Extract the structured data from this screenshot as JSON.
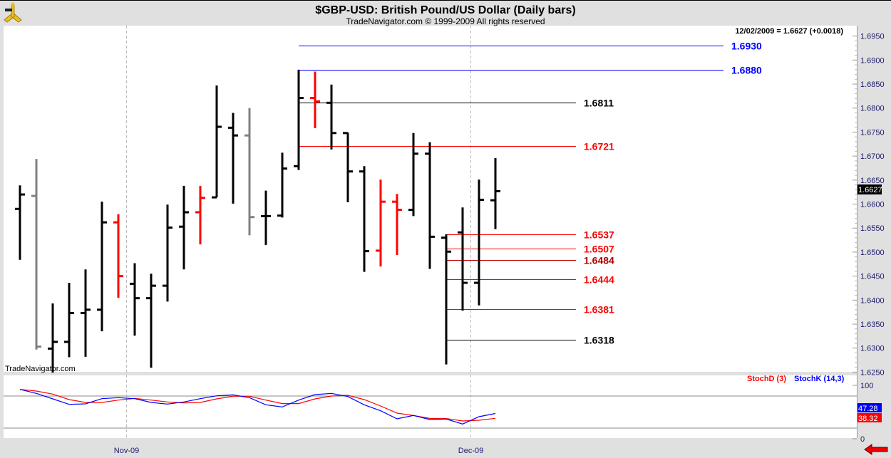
{
  "header": {
    "title": "$GBP-USD:  British Pound/US Dollar  (Daily bars)",
    "subtitle": "TradeNavigator.com © 1999-2009 All rights reserved",
    "logo_icon": "sextant-icon"
  },
  "watermark": "TradeNavigator.com",
  "last_quote": "12/02/2009 = 1.6627 (+0.0018)",
  "current_price_label": "1.6627",
  "nav": {
    "back_icon": "red-left-arrow-icon"
  },
  "chart_data": [
    {
      "type": "ohlc",
      "title": "$GBP-USD:  British Pound/US Dollar  (Daily bars)",
      "y_ticks": [
        "1.6950",
        "1.6900",
        "1.6850",
        "1.6800",
        "1.6750",
        "1.6700",
        "1.6650",
        "1.6600",
        "1.6550",
        "1.6500",
        "1.6450",
        "1.6400",
        "1.6350",
        "1.6300",
        "1.6250"
      ],
      "ylim": [
        1.625,
        1.695
      ],
      "x_ticks": [
        {
          "label": "Nov-09",
          "date": "2009-11-02"
        },
        {
          "label": "Dec-09",
          "date": "2009-12-01"
        }
      ],
      "grid": "vertical dashed at month starts",
      "colors": {
        "up": "#000000",
        "down": "#ff0000",
        "neutral": "#808080"
      },
      "bars": [
        {
          "date": "2009-10-22",
          "o": 1.659,
          "h": 1.6639,
          "l": 1.6484,
          "c": 1.662,
          "color": "#000000"
        },
        {
          "date": "2009-10-23",
          "o": 1.6617,
          "h": 1.6694,
          "l": 1.6297,
          "c": 1.6303,
          "color": "#808080"
        },
        {
          "date": "2009-10-26",
          "o": 1.6299,
          "h": 1.6393,
          "l": 1.6249,
          "c": 1.6313,
          "color": "#000000"
        },
        {
          "date": "2009-10-27",
          "o": 1.6313,
          "h": 1.6436,
          "l": 1.6281,
          "c": 1.6373,
          "color": "#000000"
        },
        {
          "date": "2009-10-28",
          "o": 1.6373,
          "h": 1.6464,
          "l": 1.6282,
          "c": 1.638,
          "color": "#000000"
        },
        {
          "date": "2009-10-29",
          "o": 1.638,
          "h": 1.6605,
          "l": 1.6335,
          "c": 1.6562,
          "color": "#000000"
        },
        {
          "date": "2009-10-30",
          "o": 1.6562,
          "h": 1.6579,
          "l": 1.6405,
          "c": 1.645,
          "color": "#ff0000"
        },
        {
          "date": "2009-11-02",
          "o": 1.6434,
          "h": 1.6477,
          "l": 1.6326,
          "c": 1.6404,
          "color": "#000000"
        },
        {
          "date": "2009-11-03",
          "o": 1.6404,
          "h": 1.6455,
          "l": 1.6259,
          "c": 1.643,
          "color": "#000000"
        },
        {
          "date": "2009-11-04",
          "o": 1.643,
          "h": 1.6599,
          "l": 1.6397,
          "c": 1.6551,
          "color": "#000000"
        },
        {
          "date": "2009-11-05",
          "o": 1.6553,
          "h": 1.6638,
          "l": 1.6464,
          "c": 1.6583,
          "color": "#000000"
        },
        {
          "date": "2009-11-06",
          "o": 1.6583,
          "h": 1.6638,
          "l": 1.6516,
          "c": 1.6613,
          "color": "#ff0000"
        },
        {
          "date": "2009-11-09",
          "o": 1.6614,
          "h": 1.6847,
          "l": 1.6614,
          "c": 1.6761,
          "color": "#000000"
        },
        {
          "date": "2009-11-10",
          "o": 1.6759,
          "h": 1.679,
          "l": 1.6601,
          "c": 1.6743,
          "color": "#000000"
        },
        {
          "date": "2009-11-11",
          "o": 1.6743,
          "h": 1.68,
          "l": 1.6535,
          "c": 1.6573,
          "color": "#808080"
        },
        {
          "date": "2009-11-12",
          "o": 1.6575,
          "h": 1.6628,
          "l": 1.6515,
          "c": 1.6575,
          "color": "#000000"
        },
        {
          "date": "2009-11-13",
          "o": 1.6576,
          "h": 1.6707,
          "l": 1.6572,
          "c": 1.6674,
          "color": "#000000"
        },
        {
          "date": "2009-11-16",
          "o": 1.6679,
          "h": 1.688,
          "l": 1.6671,
          "c": 1.6821,
          "color": "#000000"
        },
        {
          "date": "2009-11-17",
          "o": 1.6821,
          "h": 1.6876,
          "l": 1.6758,
          "c": 1.6814,
          "color": "#ff0000"
        },
        {
          "date": "2009-11-18",
          "o": 1.6811,
          "h": 1.6849,
          "l": 1.6714,
          "c": 1.6748,
          "color": "#000000"
        },
        {
          "date": "2009-11-19",
          "o": 1.6748,
          "h": 1.6749,
          "l": 1.6604,
          "c": 1.6668,
          "color": "#000000"
        },
        {
          "date": "2009-11-20",
          "o": 1.6668,
          "h": 1.6679,
          "l": 1.6459,
          "c": 1.6502,
          "color": "#000000"
        },
        {
          "date": "2009-11-23",
          "o": 1.6503,
          "h": 1.6651,
          "l": 1.647,
          "c": 1.6605,
          "color": "#ff0000"
        },
        {
          "date": "2009-11-24",
          "o": 1.6605,
          "h": 1.6621,
          "l": 1.6494,
          "c": 1.6588,
          "color": "#ff0000"
        },
        {
          "date": "2009-11-25",
          "o": 1.6588,
          "h": 1.6748,
          "l": 1.6575,
          "c": 1.6705,
          "color": "#000000"
        },
        {
          "date": "2009-11-26",
          "o": 1.6705,
          "h": 1.6729,
          "l": 1.6465,
          "c": 1.6532,
          "color": "#000000"
        },
        {
          "date": "2009-11-27",
          "o": 1.653,
          "h": 1.6537,
          "l": 1.6266,
          "c": 1.6501,
          "color": "#000000"
        },
        {
          "date": "2009-11-30",
          "o": 1.6541,
          "h": 1.6593,
          "l": 1.6378,
          "c": 1.6436,
          "color": "#000000"
        },
        {
          "date": "2009-12-01",
          "o": 1.6436,
          "h": 1.6651,
          "l": 1.6389,
          "c": 1.6609,
          "color": "#000000"
        },
        {
          "date": "2009-12-02",
          "o": 1.6608,
          "h": 1.6696,
          "l": 1.6548,
          "c": 1.6627,
          "color": "#000000"
        }
      ],
      "levels": [
        {
          "value": 1.693,
          "label": "1.6930",
          "color": "#0000ff",
          "from_date": "2009-11-16",
          "label_color": "#0000ff",
          "label_side": "far"
        },
        {
          "value": 1.688,
          "label": "1.6880",
          "color": "#0000ff",
          "from_date": "2009-11-16",
          "label_color": "#0000ff",
          "label_side": "far"
        },
        {
          "value": 1.6811,
          "label": "1.6811",
          "color": "#000000",
          "from_date": "2009-11-16",
          "label_color": "#000000",
          "label_side": "near"
        },
        {
          "value": 1.6721,
          "label": "1.6721",
          "color": "#ff0000",
          "from_date": "2009-11-16",
          "label_color": "#ff0000",
          "label_side": "near"
        },
        {
          "value": 1.6537,
          "label": "1.6537",
          "color": "#ff0000",
          "from_date": "2009-11-27",
          "label_color": "#ff0000",
          "label_side": "near"
        },
        {
          "value": 1.6507,
          "label": "1.6507",
          "color": "#ff0000",
          "from_date": "2009-11-27",
          "label_color": "#ff0000",
          "label_side": "near"
        },
        {
          "value": 1.6484,
          "label": "1.6484",
          "color": "#c00000",
          "from_date": "2009-11-27",
          "label_color": "#b00000",
          "label_side": "near"
        },
        {
          "value": 1.6444,
          "label": "1.6444",
          "color": "#ff0000",
          "from_date": "2009-11-27",
          "label_color": "#ff0000",
          "label_side": "near"
        },
        {
          "value": 1.6381,
          "label": "1.6381",
          "color": "#ff0000",
          "from_date": "2009-11-27",
          "label_color": "#ff0000",
          "label_side": "near"
        },
        {
          "value": 1.6318,
          "label": "1.6318",
          "color": "#000000",
          "from_date": "2009-11-27",
          "label_color": "#000000",
          "label_side": "near"
        }
      ]
    },
    {
      "type": "line",
      "ylim": [
        0,
        100
      ],
      "y_ticks": [
        "100",
        "0"
      ],
      "reference_lines": [
        80,
        20
      ],
      "series": [
        {
          "name": "StochD (3)",
          "color": "#ff0000",
          "last_label": "38.32",
          "values": [
            92.4,
            89.3,
            83.6,
            73.3,
            68,
            68,
            72.4,
            75.6,
            72.4,
            68.9,
            67.1,
            68,
            74.7,
            79.6,
            79.6,
            72.4,
            65.8,
            65.8,
            74.7,
            80,
            81.3,
            73.3,
            61.3,
            48,
            43.6,
            38.2,
            37.8,
            33.3,
            34.7,
            38.32
          ]
        },
        {
          "name": "StochK (14,3)",
          "color": "#0000ff",
          "last_label": "47.28",
          "values": [
            92.4,
            84.9,
            74.7,
            64.4,
            65.3,
            75.1,
            76.9,
            75.1,
            68,
            64.9,
            68.9,
            75.1,
            80.4,
            82.2,
            76.9,
            63.6,
            59.6,
            72.4,
            82.7,
            84.9,
            79.1,
            63.6,
            52.4,
            37.3,
            43.6,
            36,
            36.9,
            27.6,
            41.3,
            47.28
          ]
        }
      ]
    }
  ]
}
